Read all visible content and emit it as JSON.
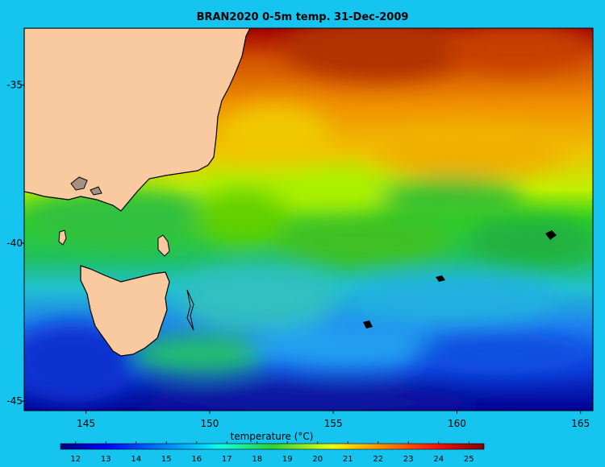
{
  "title": "BRAN2020 0-5m temp. 31-Dec-2009",
  "map": {
    "lon_range": [
      142.5,
      165.5
    ],
    "lat_range": [
      -45.3,
      -33.2
    ],
    "lon_ticks": [
      145,
      150,
      155,
      160,
      165
    ],
    "lon_tick_labels": [
      "145",
      "150",
      "155",
      "160",
      "165"
    ],
    "lat_ticks": [
      -35,
      -40,
      -45
    ],
    "lat_tick_labels": [
      "-35",
      "-40",
      "-45"
    ],
    "land_color": "#f9c9a0",
    "colormap": "jet"
  },
  "colorbar": {
    "title": "temperature (°C)",
    "range": [
      11.5,
      25.5
    ],
    "ticks": [
      12,
      13,
      14,
      15,
      16,
      17,
      18,
      19,
      20,
      21,
      22,
      23,
      24,
      25
    ],
    "tick_labels": [
      "12",
      "13",
      "14",
      "15",
      "16",
      "17",
      "18",
      "19",
      "20",
      "21",
      "22",
      "23",
      "24",
      "25"
    ]
  }
}
